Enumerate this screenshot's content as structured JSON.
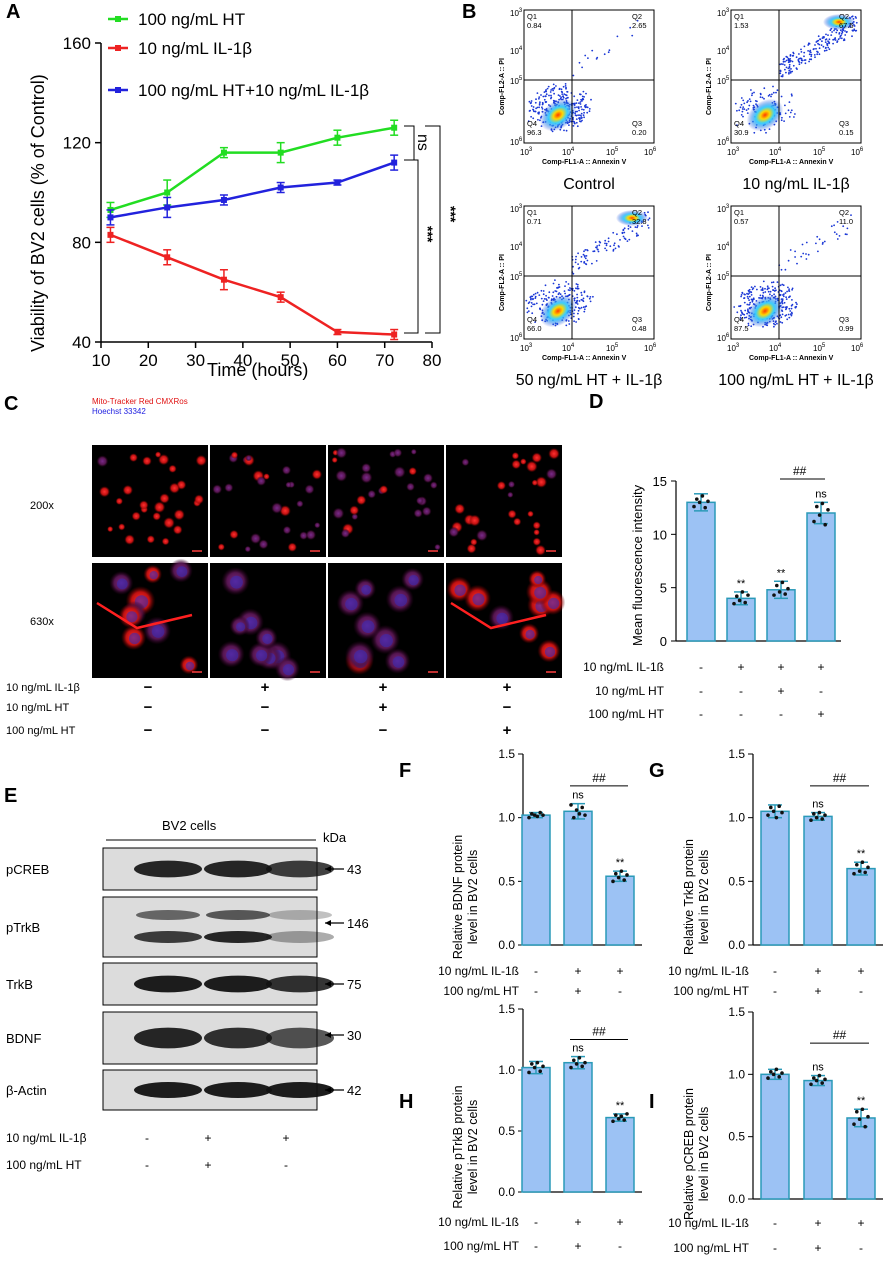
{
  "panels": {
    "A": "A",
    "B": "B",
    "C": "C",
    "D": "D",
    "E": "E",
    "F": "F",
    "G": "G",
    "H": "H",
    "I": "I"
  },
  "panelA": {
    "chart_data": {
      "type": "line",
      "xlabel": "Time (hours)",
      "ylabel": "Viability of BV2 cells (% of Control)",
      "xlim": [
        10,
        80
      ],
      "ylim": [
        40,
        160
      ],
      "xticks": [
        10,
        20,
        30,
        40,
        50,
        60,
        70,
        80
      ],
      "yticks": [
        40,
        80,
        120,
        160
      ],
      "x": [
        12,
        24,
        36,
        48,
        60,
        72
      ],
      "legend_position": "top-left",
      "series": [
        {
          "name": "100 ng/mL HT",
          "color": "#22dd22",
          "values": [
            93,
            100,
            116,
            116,
            122,
            126
          ],
          "err": [
            3,
            5,
            2,
            4,
            3,
            3
          ]
        },
        {
          "name": "10 ng/mL IL-1β",
          "color": "#ee2222",
          "values": [
            83,
            74,
            65,
            58,
            44,
            43
          ],
          "err": [
            3,
            3,
            4,
            2,
            1,
            2
          ]
        },
        {
          "name": "100 ng/mL HT+10 ng/mL IL-1β",
          "color": "#2222dd",
          "values": [
            90,
            94,
            97,
            102,
            104,
            112
          ],
          "err": [
            3,
            4,
            2,
            2,
            1,
            3
          ]
        }
      ],
      "annotations": [
        "ns",
        "***",
        "***"
      ]
    }
  },
  "panelB": {
    "plots": [
      {
        "caption": "Control",
        "q1": "0.84",
        "q2": "2.65",
        "q3": "0.20",
        "q4": "96.3"
      },
      {
        "caption": "10 ng/mL IL-1β",
        "q1": "1.53",
        "q2": "67.5",
        "q3": "0.15",
        "q4": "30.9"
      },
      {
        "caption": "50 ng/mL HT + IL-1β",
        "q1": "0.71",
        "q2": "32.8",
        "q3": "0.48",
        "q4": "66.0"
      },
      {
        "caption": "100 ng/mL HT + IL-1β",
        "q1": "0.57",
        "q2": "11.0",
        "q3": "0.99",
        "q4": "87.5"
      }
    ],
    "quad_labels": [
      "Q1",
      "Q2",
      "Q3",
      "Q4"
    ],
    "ylabel": "Comp-FL2-A :: PI",
    "xlabel": "Comp-FL1-A :: Annexin V",
    "ticks": [
      "10",
      "10",
      "10",
      "10"
    ],
    "tick_exp": [
      "3",
      "4",
      "5",
      "6"
    ]
  },
  "panelC": {
    "legend1": "Mito-Tracker Red CMXRos",
    "legend2": "Hoechst 33342",
    "row_labels": [
      "200x",
      "630x"
    ],
    "conditions": [
      {
        "label": "10 ng/mL IL-1β",
        "values": [
          "−",
          "+",
          "+",
          "+"
        ]
      },
      {
        "label": "10 ng/mL HT",
        "values": [
          "−",
          "−",
          "+",
          "−"
        ]
      },
      {
        "label": "100 ng/mL HT",
        "values": [
          "−",
          "−",
          "−",
          "+"
        ]
      }
    ]
  },
  "panelD": {
    "chart_data": {
      "type": "bar",
      "ylabel": "Mean fluorescence intensity",
      "ylim": [
        0,
        15
      ],
      "yticks": [
        0,
        5,
        10,
        15
      ],
      "values": [
        13.0,
        4.0,
        4.8,
        12.0
      ],
      "err": [
        0.8,
        0.6,
        0.8,
        1.0
      ],
      "points": [
        [
          12.6,
          13.3,
          13.0,
          13.6,
          12.5,
          13.1
        ],
        [
          3.5,
          4.2,
          3.8,
          4.6,
          3.6,
          4.3
        ],
        [
          4.3,
          5.2,
          4.6,
          5.5,
          4.4,
          4.9
        ],
        [
          11.2,
          12.6,
          11.8,
          12.9,
          10.9,
          12.3
        ]
      ],
      "sig": [
        "",
        "**",
        "**",
        "ns"
      ],
      "bracket": "##",
      "conditions": [
        {
          "label": "10 ng/mL IL-1ß",
          "values": [
            "-",
            "+",
            "+",
            "+"
          ]
        },
        {
          "label": "10 ng/mL HT",
          "values": [
            "-",
            "-",
            "+",
            "-"
          ]
        },
        {
          "label": "100 ng/mL HT",
          "values": [
            "-",
            "-",
            "-",
            "+"
          ]
        }
      ]
    }
  },
  "panelE": {
    "header": "BV2 cells",
    "kda": "kDa",
    "rows": [
      {
        "name": "pCREB",
        "kda": "43"
      },
      {
        "name": "pTrkB",
        "kda": "146"
      },
      {
        "name": "TrkB",
        "kda": "75"
      },
      {
        "name": "BDNF",
        "kda": "30"
      },
      {
        "name": "β-Actin",
        "kda": "42"
      }
    ],
    "conditions": [
      {
        "label": "10 ng/mL IL-1β",
        "values": [
          "-",
          "+",
          "+"
        ]
      },
      {
        "label": "100 ng/mL HT",
        "values": [
          "-",
          "+",
          "-"
        ]
      }
    ]
  },
  "smallCharts": [
    {
      "id": "F",
      "ylabel1": "Relative BDNF protein",
      "ylabel2": "level in BV2 cells",
      "values": [
        1.02,
        1.05,
        0.54
      ],
      "err": [
        0.02,
        0.06,
        0.04
      ],
      "points": [
        [
          1.0,
          1.03,
          1.02,
          1.01,
          1.04,
          1.02
        ],
        [
          1.1,
          1.0,
          1.06,
          1.03,
          1.08,
          1.02
        ],
        [
          0.5,
          0.56,
          0.53,
          0.58,
          0.51,
          0.55
        ]
      ],
      "sig": [
        "",
        "ns",
        "**"
      ]
    },
    {
      "id": "G",
      "ylabel1": "Relative TrkB protein",
      "ylabel2": "level in BV2 cells",
      "values": [
        1.05,
        1.01,
        0.6
      ],
      "err": [
        0.05,
        0.03,
        0.05
      ],
      "points": [
        [
          1.02,
          1.08,
          1.05,
          1.0,
          1.09,
          1.04
        ],
        [
          0.98,
          1.03,
          1.0,
          1.04,
          0.99,
          1.02
        ],
        [
          0.56,
          0.63,
          0.58,
          0.65,
          0.57,
          0.61
        ]
      ],
      "sig": [
        "",
        "ns",
        "**"
      ]
    },
    {
      "id": "H",
      "ylabel1": "Relative pTrkB protein",
      "ylabel2": "level in BV2 cells",
      "values": [
        1.02,
        1.06,
        0.61
      ],
      "err": [
        0.05,
        0.05,
        0.03
      ],
      "points": [
        [
          0.98,
          1.05,
          1.02,
          1.06,
          0.99,
          1.03
        ],
        [
          1.02,
          1.08,
          1.05,
          1.1,
          1.03,
          1.06
        ],
        [
          0.58,
          0.63,
          0.6,
          0.62,
          0.59,
          0.64
        ]
      ],
      "sig": [
        "",
        "ns",
        "**"
      ]
    },
    {
      "id": "I",
      "ylabel1": "Relative pCREB protein",
      "ylabel2": "level in BV2 cells",
      "values": [
        1.0,
        0.95,
        0.65
      ],
      "err": [
        0.04,
        0.04,
        0.07
      ],
      "points": [
        [
          0.97,
          1.02,
          1.0,
          1.04,
          0.98,
          1.01
        ],
        [
          0.92,
          0.97,
          0.95,
          0.99,
          0.93,
          0.96
        ],
        [
          0.6,
          0.7,
          0.64,
          0.72,
          0.58,
          0.66
        ]
      ],
      "sig": [
        "",
        "ns",
        "**"
      ]
    }
  ],
  "small_shared": {
    "yticks": [
      "0.0",
      "0.5",
      "1.0",
      "1.5"
    ],
    "ylim": [
      0,
      1.5
    ],
    "bracket": "##",
    "conditions": [
      {
        "label": "10 ng/mL IL-1ß",
        "values": [
          "-",
          "+",
          "+"
        ]
      },
      {
        "label": "100 ng/mL HT",
        "values": [
          "-",
          "+",
          "-"
        ]
      }
    ]
  },
  "colors": {
    "bar_fill": "#9cc2f4",
    "bar_stroke": "#2a9ab8",
    "flow_dots": "#1a37d6"
  }
}
